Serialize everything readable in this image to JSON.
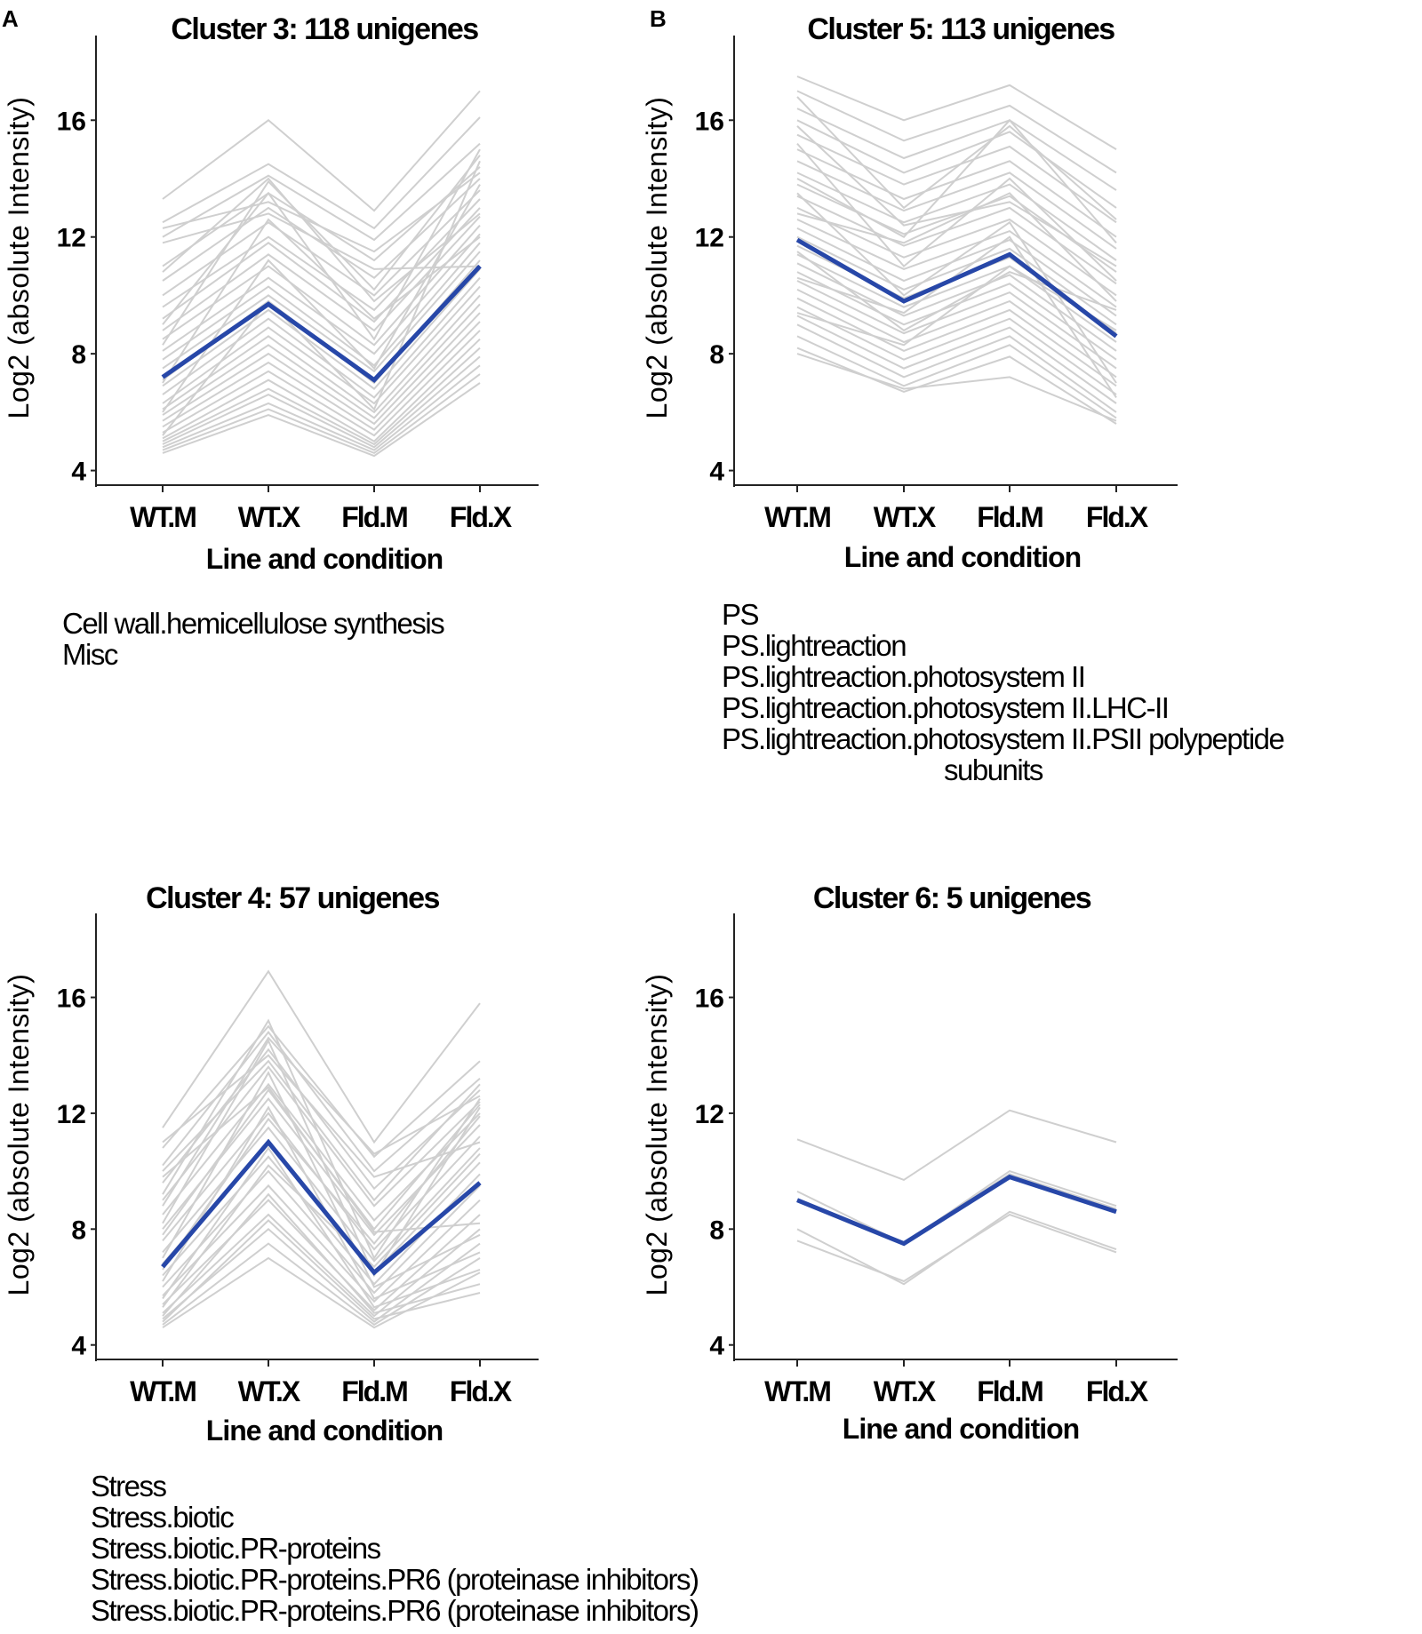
{
  "chart_data": [
    {
      "type": "line",
      "panel_label": "A",
      "title": "Cluster 3: 118 unigenes",
      "xlabel": "Line and condition",
      "ylabel": "Log2 (absolute Intensity)",
      "categories": [
        "WT.M",
        "WT.X",
        "Fld.M",
        "Fld.X"
      ],
      "yticks": [
        "4",
        "8",
        "12",
        "16"
      ],
      "ylim": [
        3.5,
        18.9
      ],
      "grid": false,
      "mean_color": "#2747a8",
      "member_color": "#cfcfcf",
      "mean_series": {
        "name": "cluster mean",
        "values": [
          7.2,
          9.7,
          7.1,
          11.0
        ]
      },
      "member_profiles_drawn": 36,
      "member_series": [
        {
          "values": [
            13.3,
            16.0,
            12.9,
            17.0
          ]
        },
        {
          "values": [
            12.5,
            14.5,
            12.3,
            16.1
          ]
        },
        {
          "values": [
            12.0,
            14.1,
            11.9,
            15.2
          ]
        },
        {
          "values": [
            11.0,
            13.5,
            11.2,
            14.4
          ]
        },
        {
          "values": [
            10.5,
            13.0,
            10.6,
            14.0
          ]
        },
        {
          "values": [
            10.0,
            12.5,
            10.0,
            13.6
          ]
        },
        {
          "values": [
            9.6,
            12.0,
            9.5,
            13.3
          ]
        },
        {
          "values": [
            9.2,
            11.8,
            9.1,
            13.0
          ]
        },
        {
          "values": [
            8.8,
            11.4,
            8.8,
            12.7
          ]
        },
        {
          "values": [
            8.5,
            11.0,
            8.3,
            12.4
          ]
        },
        {
          "values": [
            8.1,
            10.6,
            8.0,
            12.1
          ]
        },
        {
          "values": [
            7.8,
            10.3,
            7.6,
            11.8
          ]
        },
        {
          "values": [
            7.5,
            10.0,
            7.4,
            11.5
          ]
        },
        {
          "values": [
            7.1,
            9.8,
            7.0,
            11.2
          ]
        },
        {
          "values": [
            6.9,
            9.5,
            6.8,
            10.9
          ]
        },
        {
          "values": [
            6.6,
            9.2,
            6.5,
            10.6
          ]
        },
        {
          "values": [
            6.3,
            8.9,
            6.3,
            10.3
          ]
        },
        {
          "values": [
            6.1,
            8.6,
            6.0,
            10.0
          ]
        },
        {
          "values": [
            5.9,
            8.3,
            5.8,
            9.7
          ]
        },
        {
          "values": [
            5.7,
            8.0,
            5.6,
            9.4
          ]
        },
        {
          "values": [
            5.5,
            7.7,
            5.4,
            9.1
          ]
        },
        {
          "values": [
            5.3,
            7.4,
            5.2,
            8.8
          ]
        },
        {
          "values": [
            5.1,
            7.1,
            5.0,
            8.5
          ]
        },
        {
          "values": [
            5.0,
            6.8,
            4.9,
            8.2
          ]
        },
        {
          "values": [
            4.9,
            6.6,
            4.8,
            7.9
          ]
        },
        {
          "values": [
            4.8,
            6.3,
            4.7,
            7.6
          ]
        },
        {
          "values": [
            4.7,
            6.1,
            4.6,
            7.3
          ]
        },
        {
          "values": [
            4.6,
            5.9,
            4.5,
            7.0
          ]
        },
        {
          "values": [
            10.8,
            14.0,
            9.8,
            12.8
          ]
        },
        {
          "values": [
            9.0,
            13.5,
            8.5,
            15.0
          ]
        },
        {
          "values": [
            12.3,
            13.2,
            11.5,
            14.2
          ]
        },
        {
          "values": [
            6.0,
            11.2,
            7.5,
            13.8
          ]
        },
        {
          "values": [
            5.2,
            9.8,
            6.1,
            14.6
          ]
        },
        {
          "values": [
            7.0,
            12.6,
            9.2,
            12.0
          ]
        },
        {
          "values": [
            11.8,
            12.8,
            10.9,
            11.0
          ]
        },
        {
          "values": [
            8.3,
            13.9,
            10.2,
            14.8
          ]
        }
      ],
      "category_terms": [
        "Cell wall.hemicellulose synthesis",
        "Misc"
      ]
    },
    {
      "type": "line",
      "panel_label": "B",
      "title": "Cluster 5: 113 unigenes",
      "xlabel": "Line and condition",
      "ylabel": "Log2 (absolute Intensity)",
      "categories": [
        "WT.M",
        "WT.X",
        "Fld.M",
        "Fld.X"
      ],
      "yticks": [
        "4",
        "8",
        "12",
        "16"
      ],
      "ylim": [
        3.5,
        18.9
      ],
      "grid": false,
      "mean_color": "#2747a8",
      "member_color": "#cfcfcf",
      "mean_series": {
        "name": "cluster mean",
        "values": [
          11.9,
          9.8,
          11.4,
          8.6
        ]
      },
      "member_profiles_drawn": 36,
      "member_series": [
        {
          "values": [
            17.5,
            16.0,
            17.2,
            15.0
          ]
        },
        {
          "values": [
            17.0,
            15.3,
            16.5,
            14.2
          ]
        },
        {
          "values": [
            16.4,
            14.7,
            16.0,
            13.6
          ]
        },
        {
          "values": [
            16.0,
            14.2,
            15.6,
            13.0
          ]
        },
        {
          "values": [
            15.5,
            13.8,
            15.1,
            12.5
          ]
        },
        {
          "values": [
            15.0,
            13.3,
            14.6,
            12.0
          ]
        },
        {
          "values": [
            14.6,
            12.9,
            14.2,
            11.6
          ]
        },
        {
          "values": [
            14.2,
            12.5,
            13.8,
            11.2
          ]
        },
        {
          "values": [
            13.8,
            12.1,
            13.4,
            10.8
          ]
        },
        {
          "values": [
            13.4,
            11.7,
            13.0,
            10.4
          ]
        },
        {
          "values": [
            13.0,
            11.3,
            12.6,
            10.0
          ]
        },
        {
          "values": [
            12.6,
            10.9,
            12.2,
            9.6
          ]
        },
        {
          "values": [
            12.3,
            10.5,
            11.9,
            9.3
          ]
        },
        {
          "values": [
            12.0,
            10.2,
            11.6,
            9.0
          ]
        },
        {
          "values": [
            11.7,
            9.9,
            11.3,
            8.7
          ]
        },
        {
          "values": [
            11.4,
            9.6,
            11.0,
            8.4
          ]
        },
        {
          "values": [
            11.1,
            9.3,
            10.7,
            8.1
          ]
        },
        {
          "values": [
            10.8,
            9.0,
            10.4,
            7.8
          ]
        },
        {
          "values": [
            10.5,
            8.7,
            10.1,
            7.5
          ]
        },
        {
          "values": [
            10.2,
            8.4,
            9.8,
            7.2
          ]
        },
        {
          "values": [
            9.9,
            8.1,
            9.5,
            6.9
          ]
        },
        {
          "values": [
            9.6,
            7.8,
            9.2,
            6.6
          ]
        },
        {
          "values": [
            9.3,
            7.5,
            8.9,
            6.3
          ]
        },
        {
          "values": [
            9.0,
            7.2,
            8.6,
            6.0
          ]
        },
        {
          "values": [
            8.6,
            6.9,
            8.3,
            5.8
          ]
        },
        {
          "values": [
            8.2,
            6.7,
            7.9,
            5.6
          ]
        },
        {
          "values": [
            8.0,
            6.8,
            7.2,
            5.7
          ]
        },
        {
          "values": [
            16.8,
            13.0,
            15.8,
            12.6
          ]
        },
        {
          "values": [
            15.2,
            11.0,
            14.0,
            10.5
          ]
        },
        {
          "values": [
            14.0,
            12.0,
            16.0,
            11.8
          ]
        },
        {
          "values": [
            13.5,
            10.0,
            12.5,
            7.0
          ]
        },
        {
          "values": [
            12.8,
            11.8,
            13.5,
            9.8
          ]
        },
        {
          "values": [
            11.5,
            8.8,
            10.8,
            9.5
          ]
        },
        {
          "values": [
            10.6,
            9.4,
            12.0,
            6.5
          ]
        },
        {
          "values": [
            9.4,
            8.3,
            11.0,
            8.8
          ]
        },
        {
          "values": [
            15.8,
            12.4,
            13.2,
            11.0
          ]
        }
      ],
      "category_terms": [
        "PS",
        "PS.lightreaction",
        "PS.lightreaction.photosystem II",
        "PS.lightreaction.photosystem II.LHC-II",
        "PS.lightreaction.photosystem II.PSII polypeptide",
        "subunits"
      ]
    },
    {
      "type": "line",
      "panel_label": "",
      "title": "Cluster 4: 57 unigenes",
      "xlabel": "Line and condition",
      "ylabel": "Log2 (absolute Intensity)",
      "categories": [
        "WT.M",
        "WT.X",
        "Fld.M",
        "Fld.X"
      ],
      "yticks": [
        "4",
        "8",
        "12",
        "16"
      ],
      "ylim": [
        3.5,
        18.9
      ],
      "grid": false,
      "mean_color": "#2747a8",
      "member_color": "#cfcfcf",
      "mean_series": {
        "name": "cluster mean",
        "values": [
          6.7,
          11.0,
          6.5,
          9.6
        ]
      },
      "member_profiles_drawn": 32,
      "member_series": [
        {
          "values": [
            11.5,
            16.9,
            11.0,
            15.8
          ]
        },
        {
          "values": [
            10.8,
            15.0,
            10.5,
            13.8
          ]
        },
        {
          "values": [
            10.2,
            14.8,
            10.0,
            13.2
          ]
        },
        {
          "values": [
            9.6,
            14.2,
            9.4,
            12.8
          ]
        },
        {
          "values": [
            9.0,
            13.6,
            8.8,
            12.4
          ]
        },
        {
          "values": [
            8.5,
            13.0,
            8.3,
            12.0
          ]
        },
        {
          "values": [
            8.0,
            12.5,
            7.8,
            11.6
          ]
        },
        {
          "values": [
            7.6,
            12.0,
            7.3,
            11.2
          ]
        },
        {
          "values": [
            7.2,
            11.5,
            6.9,
            10.8
          ]
        },
        {
          "values": [
            6.8,
            11.0,
            6.5,
            10.3
          ]
        },
        {
          "values": [
            6.4,
            10.5,
            6.1,
            9.9
          ]
        },
        {
          "values": [
            6.0,
            10.0,
            5.8,
            9.5
          ]
        },
        {
          "values": [
            5.7,
            9.5,
            5.5,
            9.0
          ]
        },
        {
          "values": [
            5.4,
            9.0,
            5.2,
            8.5
          ]
        },
        {
          "values": [
            5.1,
            8.5,
            5.0,
            8.0
          ]
        },
        {
          "values": [
            4.9,
            8.0,
            4.8,
            7.5
          ]
        },
        {
          "values": [
            4.7,
            7.5,
            4.7,
            7.0
          ]
        },
        {
          "values": [
            4.6,
            7.0,
            4.6,
            6.5
          ]
        },
        {
          "values": [
            4.8,
            8.3,
            4.9,
            5.8
          ]
        },
        {
          "values": [
            5.0,
            9.2,
            5.1,
            6.1
          ]
        },
        {
          "values": [
            5.6,
            10.8,
            5.3,
            6.6
          ]
        },
        {
          "values": [
            6.2,
            12.2,
            5.6,
            7.2
          ]
        },
        {
          "values": [
            7.0,
            13.4,
            6.0,
            7.8
          ]
        },
        {
          "values": [
            8.2,
            14.5,
            6.4,
            12.2
          ]
        },
        {
          "values": [
            9.2,
            15.2,
            7.0,
            12.5
          ]
        },
        {
          "values": [
            10.0,
            13.8,
            9.0,
            13.0
          ]
        },
        {
          "values": [
            11.0,
            14.0,
            9.8,
            11.0
          ]
        },
        {
          "values": [
            7.8,
            12.8,
            8.0,
            12.3
          ]
        },
        {
          "values": [
            6.6,
            11.8,
            7.5,
            11.9
          ]
        },
        {
          "values": [
            5.3,
            10.2,
            6.7,
            10.6
          ]
        },
        {
          "values": [
            8.8,
            14.6,
            10.6,
            12.6
          ]
        },
        {
          "values": [
            9.8,
            12.9,
            7.9,
            8.2
          ]
        }
      ],
      "category_terms": [
        "Stress",
        "Stress.biotic",
        "Stress.biotic.PR-proteins",
        "Stress.biotic.PR-proteins.PR6 (proteinase inhibitors)",
        "Stress.biotic.PR-proteins.PR6 (proteinase inhibitors)"
      ]
    },
    {
      "type": "line",
      "panel_label": "",
      "title": "Cluster 6: 5 unigenes",
      "xlabel": "Line and condition",
      "ylabel": "Log2 (absolute Intensity)",
      "categories": [
        "WT.M",
        "WT.X",
        "Fld.M",
        "Fld.X"
      ],
      "yticks": [
        "4",
        "8",
        "12",
        "16"
      ],
      "ylim": [
        3.5,
        18.9
      ],
      "grid": false,
      "mean_color": "#2747a8",
      "member_color": "#cfcfcf",
      "mean_series": {
        "name": "cluster mean",
        "values": [
          9.0,
          7.5,
          9.8,
          8.6
        ]
      },
      "member_profiles_drawn": 5,
      "member_series": [
        {
          "values": [
            11.1,
            9.7,
            12.1,
            11.0
          ]
        },
        {
          "values": [
            9.3,
            7.5,
            10.0,
            8.8
          ]
        },
        {
          "values": [
            9.0,
            7.5,
            9.9,
            8.7
          ]
        },
        {
          "values": [
            8.0,
            6.1,
            8.6,
            7.3
          ]
        },
        {
          "values": [
            7.6,
            6.2,
            8.5,
            7.2
          ]
        }
      ],
      "category_terms": []
    }
  ]
}
